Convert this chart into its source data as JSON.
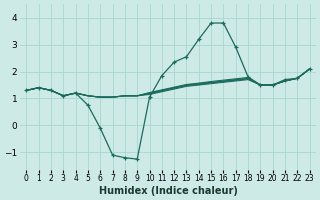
{
  "title": "",
  "xlabel": "Humidex (Indice chaleur)",
  "ylabel": "",
  "bg_color": "#ceeae6",
  "line_color": "#1a6b5e",
  "grid_color": "#a8d8d2",
  "xlim": [
    -0.5,
    23.5
  ],
  "ylim": [
    -1.65,
    4.5
  ],
  "yticks": [
    -1,
    0,
    1,
    2,
    3,
    4
  ],
  "xtick_labels": [
    "0",
    "1",
    "2",
    "3",
    "4",
    "5",
    "6",
    "7",
    "8",
    "9",
    "1011",
    "1213",
    "1415",
    "1617",
    "1819",
    "2021",
    "2223"
  ],
  "series_main": [
    1.3,
    1.4,
    1.3,
    1.1,
    1.2,
    0.75,
    -0.1,
    -1.1,
    -1.2,
    -1.25,
    1.05,
    1.85,
    2.35,
    2.55,
    3.2,
    3.8,
    3.8,
    2.9,
    1.8,
    1.5,
    1.5,
    1.7,
    1.75,
    2.1
  ],
  "series_flat": [
    [
      1.3,
      1.4,
      1.3,
      1.1,
      1.2,
      1.1,
      1.05,
      1.05,
      1.1,
      1.1,
      1.15,
      1.25,
      1.35,
      1.45,
      1.5,
      1.55,
      1.6,
      1.65,
      1.7,
      1.5,
      1.5,
      1.65,
      1.75,
      2.1
    ],
    [
      1.3,
      1.4,
      1.3,
      1.1,
      1.2,
      1.1,
      1.05,
      1.05,
      1.1,
      1.1,
      1.18,
      1.28,
      1.38,
      1.48,
      1.52,
      1.58,
      1.63,
      1.68,
      1.73,
      1.5,
      1.5,
      1.65,
      1.75,
      2.1
    ],
    [
      1.3,
      1.4,
      1.3,
      1.1,
      1.2,
      1.1,
      1.05,
      1.05,
      1.1,
      1.1,
      1.2,
      1.3,
      1.4,
      1.5,
      1.55,
      1.6,
      1.65,
      1.7,
      1.75,
      1.5,
      1.5,
      1.65,
      1.75,
      2.1
    ],
    [
      1.3,
      1.4,
      1.3,
      1.1,
      1.2,
      1.1,
      1.05,
      1.05,
      1.1,
      1.1,
      1.22,
      1.32,
      1.42,
      1.52,
      1.57,
      1.63,
      1.68,
      1.73,
      1.78,
      1.5,
      1.5,
      1.65,
      1.75,
      2.1
    ]
  ]
}
